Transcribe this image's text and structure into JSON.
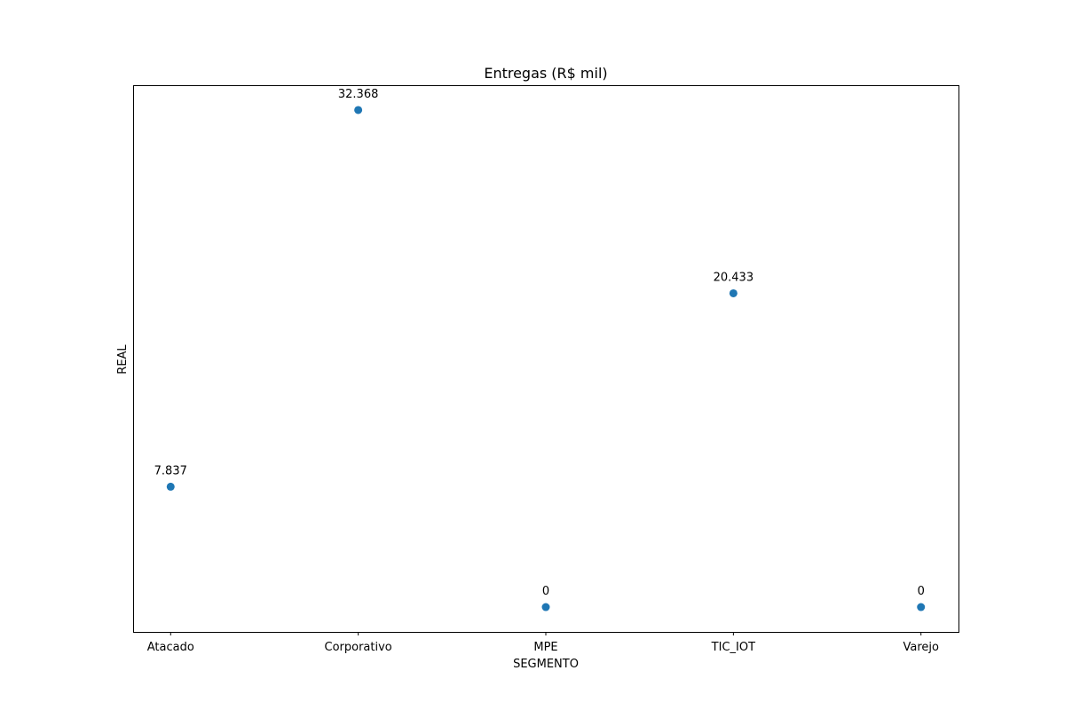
{
  "chart_data": {
    "type": "scatter",
    "title": "Entregas (R$ mil)",
    "xlabel": "SEGMENTO",
    "ylabel": "REAL",
    "categories": [
      "Atacado",
      "Corporativo",
      "MPE",
      "TIC_IOT",
      "Varejo"
    ],
    "values": [
      7837,
      32368,
      0,
      20433,
      0
    ],
    "point_labels": [
      "7.837",
      "32.368",
      "0",
      "20.433",
      "0"
    ],
    "ylim": [
      -1618,
      33986
    ],
    "yticks_shown": false,
    "grid": false,
    "marker_color": "#1f77b4"
  }
}
